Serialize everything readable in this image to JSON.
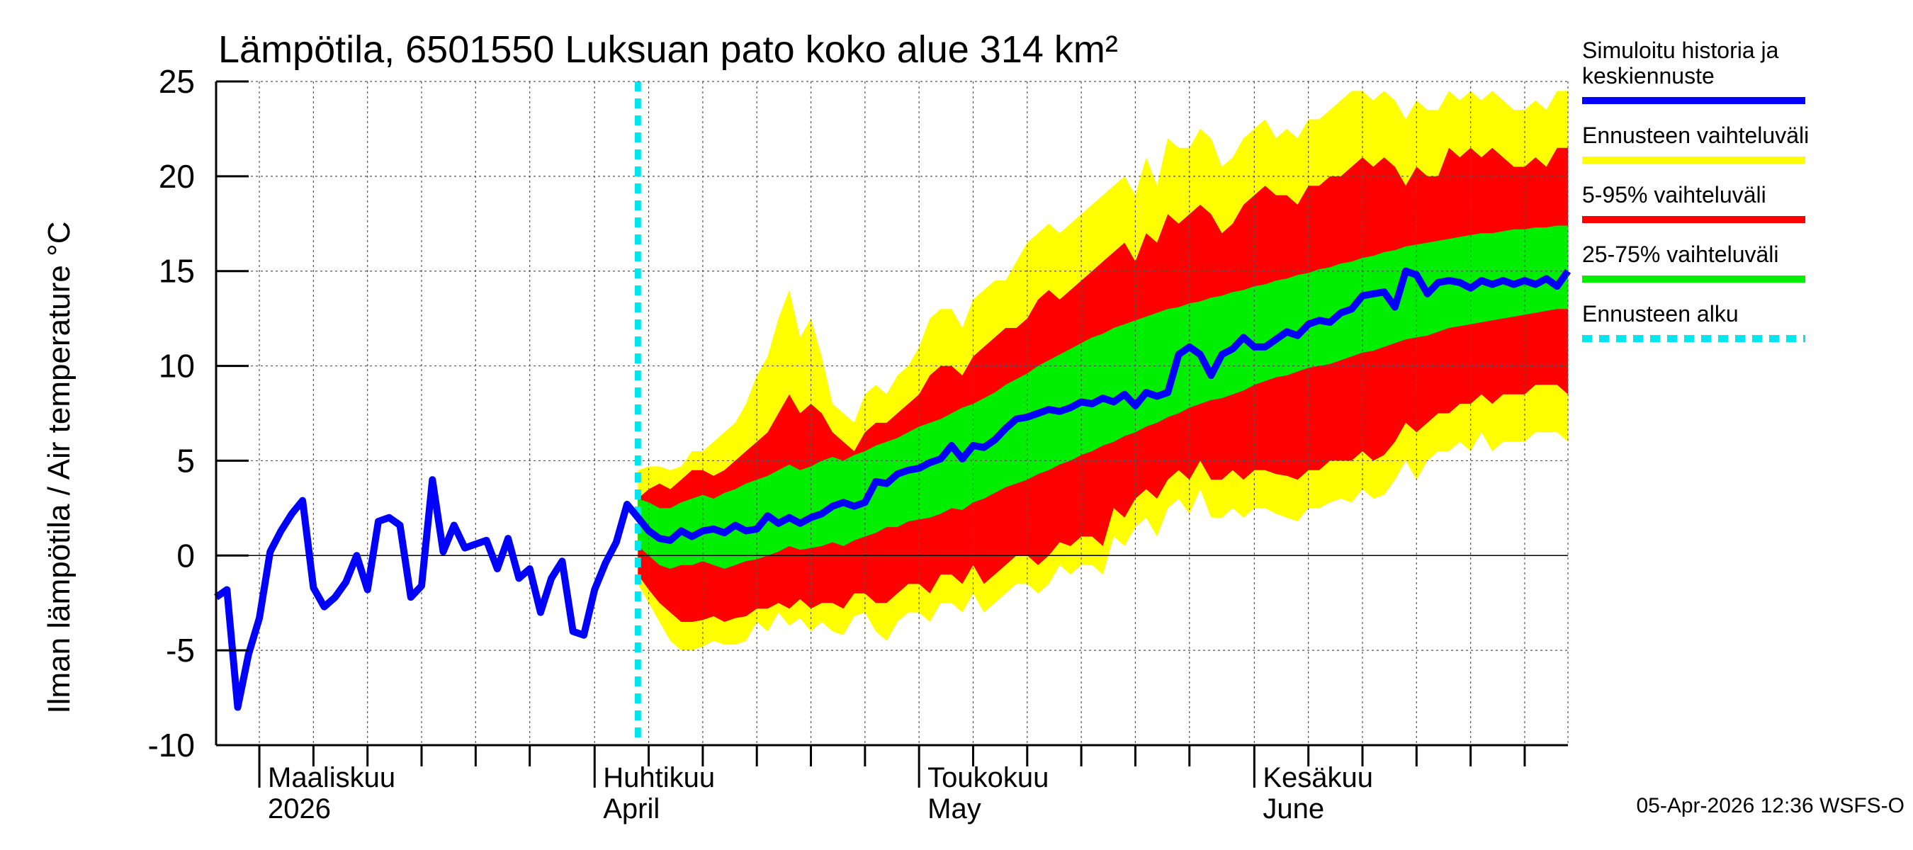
{
  "chart_data": {
    "type": "area",
    "title": "Lämpötila, 6501550 Luksuan pato koko alue 314 km²",
    "ylabel": "Ilman lämpötila / Air temperature   °C",
    "xlabel": "",
    "ylim": [
      -10,
      25
    ],
    "yticks": [
      -10,
      -5,
      0,
      5,
      10,
      15,
      20,
      25
    ],
    "x_axis": {
      "start_day": 0,
      "end_day": 125,
      "day_zero": "2026-02-25",
      "forecast_start_day": 39,
      "month_labels": [
        {
          "day": 4,
          "line1": "Maaliskuu",
          "line2": "2026"
        },
        {
          "day": 35,
          "line1": "Huhtikuu",
          "line2": "April"
        },
        {
          "day": 65,
          "line1": "Toukokuu",
          "line2": "May"
        },
        {
          "day": 96,
          "line1": "Kesäkuu",
          "line2": "June"
        }
      ],
      "minor_ticks_days": [
        4,
        9,
        14,
        19,
        24,
        29,
        35,
        40,
        45,
        50,
        55,
        60,
        65,
        70,
        75,
        80,
        85,
        90,
        96,
        101,
        106,
        111,
        116,
        121
      ]
    },
    "series": [
      {
        "name": "Simuloitu historia ja keskiennuste",
        "color": "#0000ff",
        "x": [
          0,
          1,
          2,
          3,
          4,
          5,
          6,
          7,
          8,
          9,
          10,
          11,
          12,
          13,
          14,
          15,
          16,
          17,
          18,
          19,
          20,
          21,
          22,
          23,
          24,
          25,
          26,
          27,
          28,
          29,
          30,
          31,
          32,
          33,
          34,
          35,
          36,
          37,
          38,
          39,
          40,
          41,
          42,
          43,
          44,
          45,
          46,
          47,
          48,
          49,
          50,
          51,
          52,
          53,
          54,
          55,
          56,
          57,
          58,
          59,
          60,
          61,
          62,
          63,
          64,
          65,
          66,
          67,
          68,
          69,
          70,
          71,
          72,
          73,
          74,
          75,
          76,
          77,
          78,
          79,
          80,
          81,
          82,
          83,
          84,
          85,
          86,
          87,
          88,
          89,
          90,
          91,
          92,
          93,
          94,
          95,
          96,
          97,
          98,
          99,
          100,
          101,
          102,
          103,
          104,
          105,
          106,
          107,
          108,
          109,
          110,
          111,
          112,
          113,
          114,
          115,
          116,
          117,
          118,
          119,
          120,
          121,
          122,
          123,
          124,
          125
        ],
        "y": [
          -2.2,
          -1.8,
          -8.0,
          -5.2,
          -3.3,
          0.2,
          1.3,
          2.2,
          2.9,
          -1.7,
          -2.7,
          -2.2,
          -1.4,
          0.0,
          -1.8,
          1.8,
          2.0,
          1.6,
          -2.2,
          -1.6,
          4.0,
          0.2,
          1.6,
          0.4,
          0.6,
          0.8,
          -0.7,
          0.9,
          -1.2,
          -0.7,
          -3.0,
          -1.2,
          -0.3,
          -4.0,
          -4.2,
          -1.8,
          -0.4,
          0.7,
          2.7,
          2.0,
          1.3,
          0.9,
          0.8,
          1.3,
          1.0,
          1.3,
          1.4,
          1.2,
          1.6,
          1.3,
          1.4,
          2.1,
          1.7,
          2.0,
          1.7,
          2.0,
          2.2,
          2.6,
          2.8,
          2.6,
          2.8,
          3.9,
          3.8,
          4.3,
          4.5,
          4.6,
          4.9,
          5.1,
          5.8,
          5.1,
          5.8,
          5.7,
          6.1,
          6.7,
          7.2,
          7.3,
          7.5,
          7.7,
          7.6,
          7.8,
          8.1,
          8.0,
          8.3,
          8.1,
          8.5,
          7.9,
          8.6,
          8.4,
          8.6,
          10.6,
          11.0,
          10.6,
          9.5,
          10.6,
          10.9,
          11.5,
          11.0,
          11.0,
          11.4,
          11.8,
          11.6,
          12.2,
          12.4,
          12.3,
          12.8,
          13.0,
          13.7,
          13.8,
          13.9,
          13.1,
          15.0,
          14.8,
          13.8,
          14.4,
          14.5,
          14.4,
          14.1,
          14.5,
          14.3,
          14.5,
          14.3,
          14.5,
          14.3,
          14.6,
          14.2,
          15.0
        ]
      }
    ],
    "bands": [
      {
        "name": "Ennusteen vaihteluväli",
        "color": "#ffff00",
        "x": [
          39,
          40,
          41,
          42,
          43,
          44,
          45,
          46,
          47,
          48,
          49,
          50,
          51,
          52,
          53,
          54,
          55,
          56,
          57,
          58,
          59,
          60,
          61,
          62,
          63,
          64,
          65,
          66,
          67,
          68,
          69,
          70,
          71,
          72,
          73,
          74,
          75,
          76,
          77,
          78,
          79,
          80,
          81,
          82,
          83,
          84,
          85,
          86,
          87,
          88,
          89,
          90,
          91,
          92,
          93,
          94,
          95,
          96,
          97,
          98,
          99,
          100,
          101,
          102,
          103,
          104,
          105,
          106,
          107,
          108,
          109,
          110,
          111,
          112,
          113,
          114,
          115,
          116,
          117,
          118,
          119,
          120,
          121,
          122,
          123,
          124,
          125
        ],
        "lower": [
          -1.5,
          -2.5,
          -3.5,
          -4.5,
          -5.0,
          -5.0,
          -4.8,
          -4.5,
          -4.7,
          -4.7,
          -4.5,
          -3.5,
          -4.0,
          -3.0,
          -3.7,
          -3.3,
          -4.0,
          -3.5,
          -4.0,
          -4.2,
          -3.2,
          -3.0,
          -4.0,
          -4.5,
          -3.5,
          -3.0,
          -3.0,
          -3.5,
          -2.5,
          -2.5,
          -3.0,
          -2.0,
          -3.0,
          -2.5,
          -2.0,
          -1.5,
          -1.5,
          -2.0,
          -1.5,
          -0.5,
          -1.0,
          -0.5,
          -0.5,
          -1.0,
          1.0,
          0.5,
          1.5,
          2.0,
          1.0,
          2.5,
          3.0,
          2.2,
          3.5,
          2.0,
          2.0,
          2.5,
          2.0,
          2.5,
          2.5,
          2.2,
          2.0,
          1.8,
          2.5,
          2.5,
          2.8,
          3.0,
          2.8,
          3.5,
          3.0,
          3.2,
          4.0,
          5.0,
          4.0,
          5.0,
          5.5,
          5.5,
          6.0,
          5.5,
          6.5,
          5.5,
          6.0,
          6.0,
          6.0,
          6.5,
          6.5,
          6.5,
          6.0
        ],
        "upper": [
          4.5,
          4.7,
          4.7,
          4.5,
          4.7,
          5.5,
          5.5,
          6.0,
          6.5,
          7.0,
          8.0,
          9.5,
          10.5,
          12.5,
          14.0,
          11.5,
          12.5,
          10.5,
          8.0,
          7.5,
          7.0,
          8.5,
          9.0,
          8.5,
          9.5,
          10.0,
          11.0,
          12.5,
          13.0,
          13.0,
          12.0,
          13.5,
          14.0,
          14.5,
          14.5,
          15.5,
          16.5,
          17.0,
          17.5,
          17.0,
          17.5,
          18.0,
          18.5,
          19.0,
          19.5,
          20.0,
          19.0,
          21.0,
          19.5,
          22.0,
          21.5,
          21.5,
          22.5,
          22.0,
          20.5,
          21.0,
          22.0,
          22.5,
          23.0,
          22.0,
          22.5,
          22.0,
          23.0,
          23.0,
          23.5,
          24.0,
          24.5,
          24.5,
          24.0,
          24.5,
          24.0,
          23.0,
          24.0,
          23.5,
          23.5,
          24.5,
          24.0,
          24.5,
          24.0,
          24.5,
          24.0,
          23.5,
          23.5,
          24.0,
          23.5,
          24.5,
          24.5
        ]
      },
      {
        "name": "5-95% vaihteluväli",
        "color": "#ff0000",
        "x": [
          39,
          40,
          41,
          42,
          43,
          44,
          45,
          46,
          47,
          48,
          49,
          50,
          51,
          52,
          53,
          54,
          55,
          56,
          57,
          58,
          59,
          60,
          61,
          62,
          63,
          64,
          65,
          66,
          67,
          68,
          69,
          70,
          71,
          72,
          73,
          74,
          75,
          76,
          77,
          78,
          79,
          80,
          81,
          82,
          83,
          84,
          85,
          86,
          87,
          88,
          89,
          90,
          91,
          92,
          93,
          94,
          95,
          96,
          97,
          98,
          99,
          100,
          101,
          102,
          103,
          104,
          105,
          106,
          107,
          108,
          109,
          110,
          111,
          112,
          113,
          114,
          115,
          116,
          117,
          118,
          119,
          120,
          121,
          122,
          123,
          124,
          125
        ],
        "lower": [
          -1.0,
          -1.8,
          -2.5,
          -3.0,
          -3.5,
          -3.5,
          -3.4,
          -3.2,
          -3.5,
          -3.3,
          -3.2,
          -2.8,
          -2.8,
          -2.5,
          -2.8,
          -2.3,
          -2.8,
          -2.5,
          -2.5,
          -2.8,
          -2.0,
          -2.0,
          -2.5,
          -2.5,
          -2.0,
          -1.5,
          -1.5,
          -2.0,
          -1.0,
          -1.0,
          -1.5,
          -0.5,
          -1.5,
          -1.0,
          -0.5,
          0.0,
          0.0,
          -0.5,
          0.0,
          0.7,
          0.5,
          1.0,
          1.0,
          0.5,
          2.5,
          2.0,
          3.0,
          3.5,
          3.0,
          4.0,
          4.5,
          4.0,
          5.0,
          4.0,
          4.0,
          4.5,
          4.0,
          4.5,
          4.5,
          4.3,
          4.2,
          4.0,
          4.5,
          4.5,
          5.0,
          5.0,
          5.0,
          5.5,
          5.0,
          5.3,
          6.0,
          7.0,
          6.5,
          7.0,
          7.5,
          7.5,
          8.0,
          8.0,
          8.5,
          8.0,
          8.5,
          8.5,
          8.5,
          9.0,
          9.0,
          9.0,
          8.5
        ],
        "upper": [
          3.0,
          3.5,
          3.8,
          3.5,
          4.0,
          4.5,
          4.5,
          4.2,
          4.5,
          5.0,
          5.5,
          6.0,
          6.5,
          7.5,
          8.5,
          7.5,
          8.0,
          7.5,
          6.5,
          6.0,
          5.5,
          6.5,
          7.0,
          7.0,
          7.5,
          8.0,
          8.5,
          9.5,
          10.0,
          10.0,
          9.5,
          10.5,
          11.0,
          11.5,
          12.0,
          12.0,
          12.5,
          13.5,
          14.0,
          13.5,
          14.0,
          14.5,
          15.0,
          15.5,
          16.0,
          16.5,
          15.5,
          17.0,
          16.5,
          18.0,
          17.5,
          18.0,
          18.5,
          18.0,
          17.0,
          17.5,
          18.5,
          19.0,
          19.5,
          19.0,
          19.0,
          18.5,
          19.5,
          19.5,
          20.0,
          20.0,
          20.5,
          21.0,
          20.5,
          21.0,
          20.5,
          19.5,
          20.5,
          20.0,
          20.0,
          21.5,
          21.0,
          21.5,
          21.0,
          21.5,
          21.0,
          20.5,
          20.5,
          21.0,
          20.5,
          21.5,
          21.5
        ]
      },
      {
        "name": "25-75% vaihteluväli",
        "color": "#00ee00",
        "x": [
          39,
          40,
          41,
          42,
          43,
          44,
          45,
          46,
          47,
          48,
          49,
          50,
          51,
          52,
          53,
          54,
          55,
          56,
          57,
          58,
          59,
          60,
          61,
          62,
          63,
          64,
          65,
          66,
          67,
          68,
          69,
          70,
          71,
          72,
          73,
          74,
          75,
          76,
          77,
          78,
          79,
          80,
          81,
          82,
          83,
          84,
          85,
          86,
          87,
          88,
          89,
          90,
          91,
          92,
          93,
          94,
          95,
          96,
          97,
          98,
          99,
          100,
          101,
          102,
          103,
          104,
          105,
          106,
          107,
          108,
          109,
          110,
          111,
          112,
          113,
          114,
          115,
          116,
          117,
          118,
          119,
          120,
          121,
          122,
          123,
          124,
          125
        ],
        "lower": [
          0.5,
          0.0,
          -0.5,
          -0.7,
          -0.5,
          -0.5,
          -0.3,
          -0.5,
          -0.7,
          -0.5,
          -0.3,
          -0.2,
          0.0,
          0.2,
          0.5,
          0.3,
          0.4,
          0.5,
          0.7,
          0.5,
          0.8,
          1.0,
          1.2,
          1.5,
          1.5,
          1.8,
          1.9,
          2.0,
          2.2,
          2.5,
          2.4,
          2.8,
          3.0,
          3.3,
          3.6,
          3.8,
          4.0,
          4.3,
          4.5,
          4.8,
          5.0,
          5.3,
          5.5,
          5.8,
          6.0,
          6.3,
          6.5,
          6.8,
          7.0,
          7.3,
          7.5,
          7.8,
          8.0,
          8.2,
          8.3,
          8.5,
          8.7,
          9.0,
          9.2,
          9.4,
          9.5,
          9.7,
          9.9,
          10.0,
          10.1,
          10.3,
          10.5,
          10.7,
          10.8,
          11.0,
          11.2,
          11.4,
          11.5,
          11.6,
          11.8,
          12.0,
          12.1,
          12.2,
          12.3,
          12.4,
          12.5,
          12.6,
          12.7,
          12.8,
          12.9,
          13.0,
          13.0
        ],
        "upper": [
          3.0,
          2.8,
          2.5,
          2.5,
          2.8,
          3.0,
          3.2,
          3.0,
          3.3,
          3.5,
          3.8,
          4.0,
          4.2,
          4.5,
          4.8,
          4.5,
          4.7,
          5.0,
          5.2,
          5.0,
          5.3,
          5.5,
          5.8,
          6.0,
          6.2,
          6.5,
          6.8,
          7.0,
          7.2,
          7.5,
          7.8,
          8.0,
          8.3,
          8.6,
          9.0,
          9.3,
          9.6,
          10.0,
          10.3,
          10.6,
          10.9,
          11.2,
          11.5,
          11.7,
          12.0,
          12.2,
          12.4,
          12.6,
          12.8,
          13.0,
          13.1,
          13.3,
          13.4,
          13.6,
          13.7,
          13.9,
          14.0,
          14.2,
          14.3,
          14.5,
          14.6,
          14.8,
          14.9,
          15.1,
          15.2,
          15.4,
          15.5,
          15.7,
          15.8,
          16.0,
          16.1,
          16.3,
          16.4,
          16.5,
          16.6,
          16.7,
          16.8,
          16.9,
          17.0,
          17.0,
          17.1,
          17.2,
          17.2,
          17.3,
          17.3,
          17.4,
          17.4
        ]
      }
    ],
    "legend": [
      {
        "lines": [
          "Simuloitu historia ja",
          "keskiennuste"
        ],
        "color": "#0000ff",
        "style": "solid"
      },
      {
        "lines": [
          "Ennusteen vaihteluväli"
        ],
        "color": "#ffff00",
        "style": "solid"
      },
      {
        "lines": [
          "5-95% vaihteluväli"
        ],
        "color": "#ff0000",
        "style": "solid"
      },
      {
        "lines": [
          "25-75% vaihteluväli"
        ],
        "color": "#00ee00",
        "style": "solid"
      },
      {
        "lines": [
          "Ennusteen alku"
        ],
        "color": "#00e5ee",
        "style": "dashed"
      }
    ],
    "legend_position": "right",
    "grid": true,
    "footer": "05-Apr-2026 12:36 WSFS-O"
  }
}
